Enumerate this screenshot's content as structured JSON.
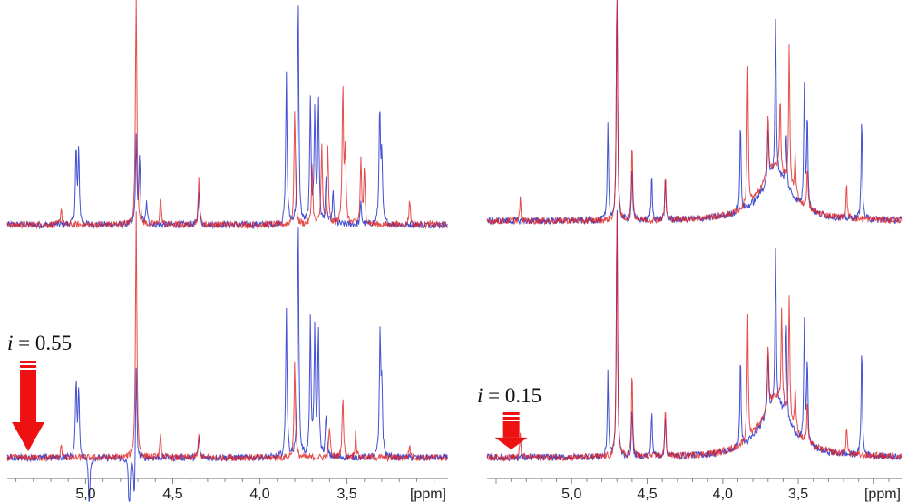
{
  "chart_data": {
    "type": "line",
    "title": "",
    "xlabel": "[ppm]",
    "ylabel": "",
    "x_reversed": true,
    "panels": [
      {
        "name": "left",
        "xlim": [
          5.45,
          2.92
        ],
        "ticks": [
          "5,0",
          "4,5",
          "4,0",
          "3,5"
        ],
        "tick_values": [
          5.0,
          4.5,
          4.0,
          3.5
        ],
        "unit_label": "[ppm]",
        "annotation": {
          "var": "i",
          "text": "= 0.55",
          "arrow_ppm": 5.33
        },
        "spectra": [
          {
            "row": "top",
            "blue": [
              [
                5.055,
                35
              ],
              [
                5.04,
                33
              ],
              [
                4.71,
                40
              ],
              [
                4.69,
                30
              ],
              [
                4.65,
                10
              ],
              [
                4.35,
                17
              ],
              [
                3.848,
                70
              ],
              [
                3.78,
                105
              ],
              [
                3.71,
                58
              ],
              [
                3.685,
                52
              ],
              [
                3.664,
                58
              ],
              [
                3.62,
                20
              ],
              [
                3.58,
                15
              ],
              [
                3.42,
                10
              ],
              [
                3.312,
                55
              ],
              [
                3.3,
                30
              ]
            ],
            "red": [
              [
                5.14,
                8
              ],
              [
                4.71,
                115
              ],
              [
                4.57,
                13
              ],
              [
                4.35,
                22
              ],
              [
                3.8,
                55
              ],
              [
                3.7,
                28
              ],
              [
                3.645,
                38
              ],
              [
                3.61,
                35
              ],
              [
                3.524,
                65
              ],
              [
                3.51,
                33
              ],
              [
                3.42,
                30
              ],
              [
                3.4,
                25
              ],
              [
                3.14,
                12
              ]
            ]
          },
          {
            "row": "bottom",
            "blue": [
              [
                5.055,
                35
              ],
              [
                5.04,
                32
              ],
              [
                4.98,
                -25
              ],
              [
                4.75,
                -30
              ],
              [
                4.72,
                -25
              ],
              [
                4.71,
                45
              ],
              [
                4.35,
                10
              ],
              [
                3.848,
                70
              ],
              [
                3.78,
                110
              ],
              [
                3.71,
                62
              ],
              [
                3.685,
                58
              ],
              [
                3.664,
                58
              ],
              [
                3.62,
                20
              ],
              [
                3.31,
                55
              ],
              [
                3.3,
                32
              ]
            ],
            "red": [
              [
                5.14,
                6
              ],
              [
                4.71,
                115
              ],
              [
                4.57,
                10
              ],
              [
                4.35,
                10
              ],
              [
                3.8,
                45
              ],
              [
                3.6,
                15
              ],
              [
                3.524,
                30
              ],
              [
                3.45,
                12
              ],
              [
                3.14,
                6
              ]
            ]
          }
        ]
      },
      {
        "name": "right",
        "xlim": [
          5.56,
          2.81
        ],
        "ticks": [
          "5,0",
          "4,5",
          "4,0",
          "3,5"
        ],
        "tick_values": [
          5.0,
          4.5,
          4.0,
          3.5
        ],
        "unit_label": "[ppm]",
        "annotation": {
          "var": "i",
          "text": "= 0.15",
          "arrow_ppm": 5.4
        },
        "spectra": [
          {
            "row": "top",
            "blue": [
              [
                4.76,
                46
              ],
              [
                4.7,
                120
              ],
              [
                4.6,
                25
              ],
              [
                4.47,
                21
              ],
              [
                4.38,
                19
              ],
              [
                3.883,
                42
              ],
              [
                3.7,
                25
              ],
              [
                3.65,
                74
              ],
              [
                3.58,
                25
              ],
              [
                3.46,
                57
              ],
              [
                3.44,
                45
              ],
              [
                3.08,
                50
              ],
              [
                3.65,
                22,
                0.12
              ]
            ],
            "red": [
              [
                5.34,
                10
              ],
              [
                4.7,
                120
              ],
              [
                4.6,
                38
              ],
              [
                4.38,
                21
              ],
              [
                3.835,
                67
              ],
              [
                3.7,
                30
              ],
              [
                3.62,
                35
              ],
              [
                3.56,
                67
              ],
              [
                3.52,
                20
              ],
              [
                3.44,
                20
              ],
              [
                3.18,
                15
              ],
              [
                3.65,
                25,
                0.12
              ]
            ]
          },
          {
            "row": "bottom",
            "blue": [
              [
                4.76,
                40
              ],
              [
                4.7,
                120
              ],
              [
                4.6,
                22
              ],
              [
                4.47,
                22
              ],
              [
                4.38,
                20
              ],
              [
                3.883,
                42
              ],
              [
                3.7,
                28
              ],
              [
                3.65,
                74
              ],
              [
                3.58,
                45
              ],
              [
                3.46,
                55
              ],
              [
                3.44,
                40
              ],
              [
                3.08,
                52
              ],
              [
                3.65,
                25,
                0.12
              ]
            ],
            "red": [
              [
                5.34,
                10
              ],
              [
                4.7,
                120
              ],
              [
                4.6,
                40
              ],
              [
                4.38,
                22
              ],
              [
                3.835,
                60
              ],
              [
                3.7,
                30
              ],
              [
                3.61,
                45
              ],
              [
                3.56,
                58
              ],
              [
                3.52,
                20
              ],
              [
                3.44,
                20
              ],
              [
                3.18,
                14
              ],
              [
                3.65,
                28,
                0.12
              ]
            ]
          }
        ]
      }
    ],
    "series_colors": {
      "blue": "#2233cc",
      "red": "#e02020"
    },
    "arrow_color": "#ee1111"
  }
}
